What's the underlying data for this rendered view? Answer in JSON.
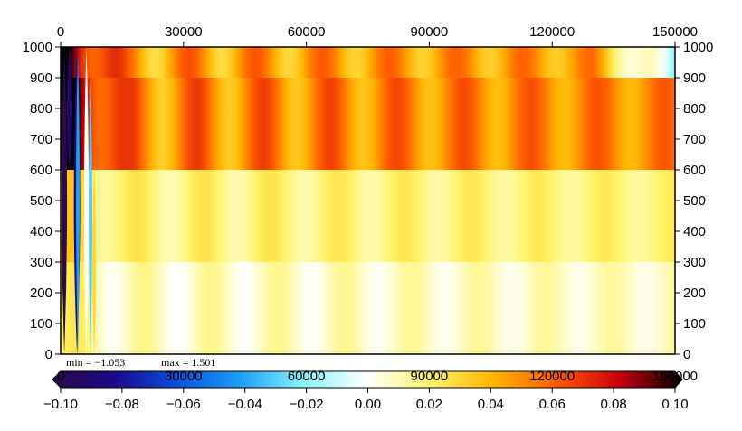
{
  "chart_data": {
    "type": "heatmap",
    "title": "",
    "xlabel": "",
    "ylabel": "",
    "x_range": [
      0,
      150000
    ],
    "y_range": [
      0,
      1000
    ],
    "x_ticks": [
      "0",
      "30000",
      "60000",
      "90000",
      "120000",
      "150000"
    ],
    "x_tick_values": [
      0,
      30000,
      60000,
      90000,
      120000,
      150000
    ],
    "y_ticks": [
      "0",
      "100",
      "200",
      "300",
      "400",
      "500",
      "600",
      "700",
      "800",
      "900",
      "1000"
    ],
    "y_tick_values": [
      0,
      100,
      200,
      300,
      400,
      500,
      600,
      700,
      800,
      900,
      1000
    ],
    "layers": [
      {
        "y_from": 0,
        "y_to": 300,
        "level": 0.008
      },
      {
        "y_from": 300,
        "y_to": 600,
        "level": 0.018
      },
      {
        "y_from": 600,
        "y_to": 900,
        "level": 0.05
      },
      {
        "y_from": 900,
        "y_to": 1000,
        "level": 0.045
      }
    ],
    "stats": {
      "min_label": "min = −1.053",
      "max_label": "max = 1.501"
    },
    "colorbar": {
      "range": [
        -0.1,
        0.1
      ],
      "ticks": [
        "−0.10",
        "−0.08",
        "−0.06",
        "−0.04",
        "−0.02",
        "0.00",
        "0.02",
        "0.04",
        "0.06",
        "0.08",
        "0.10"
      ],
      "tick_values": [
        -0.1,
        -0.08,
        -0.06,
        -0.04,
        -0.02,
        0.0,
        0.02,
        0.04,
        0.06,
        0.08,
        0.1
      ],
      "overlay_ticks": [
        "0",
        "30000",
        "60000",
        "90000",
        "120000",
        "150000"
      ],
      "colors": [
        "#2a0a4a",
        "#1a0a8c",
        "#0a50e0",
        "#1ea0f5",
        "#8af5ff",
        "#ffffff",
        "#fff46a",
        "#ffb400",
        "#ff5a00",
        "#c80010",
        "#000000"
      ]
    }
  }
}
